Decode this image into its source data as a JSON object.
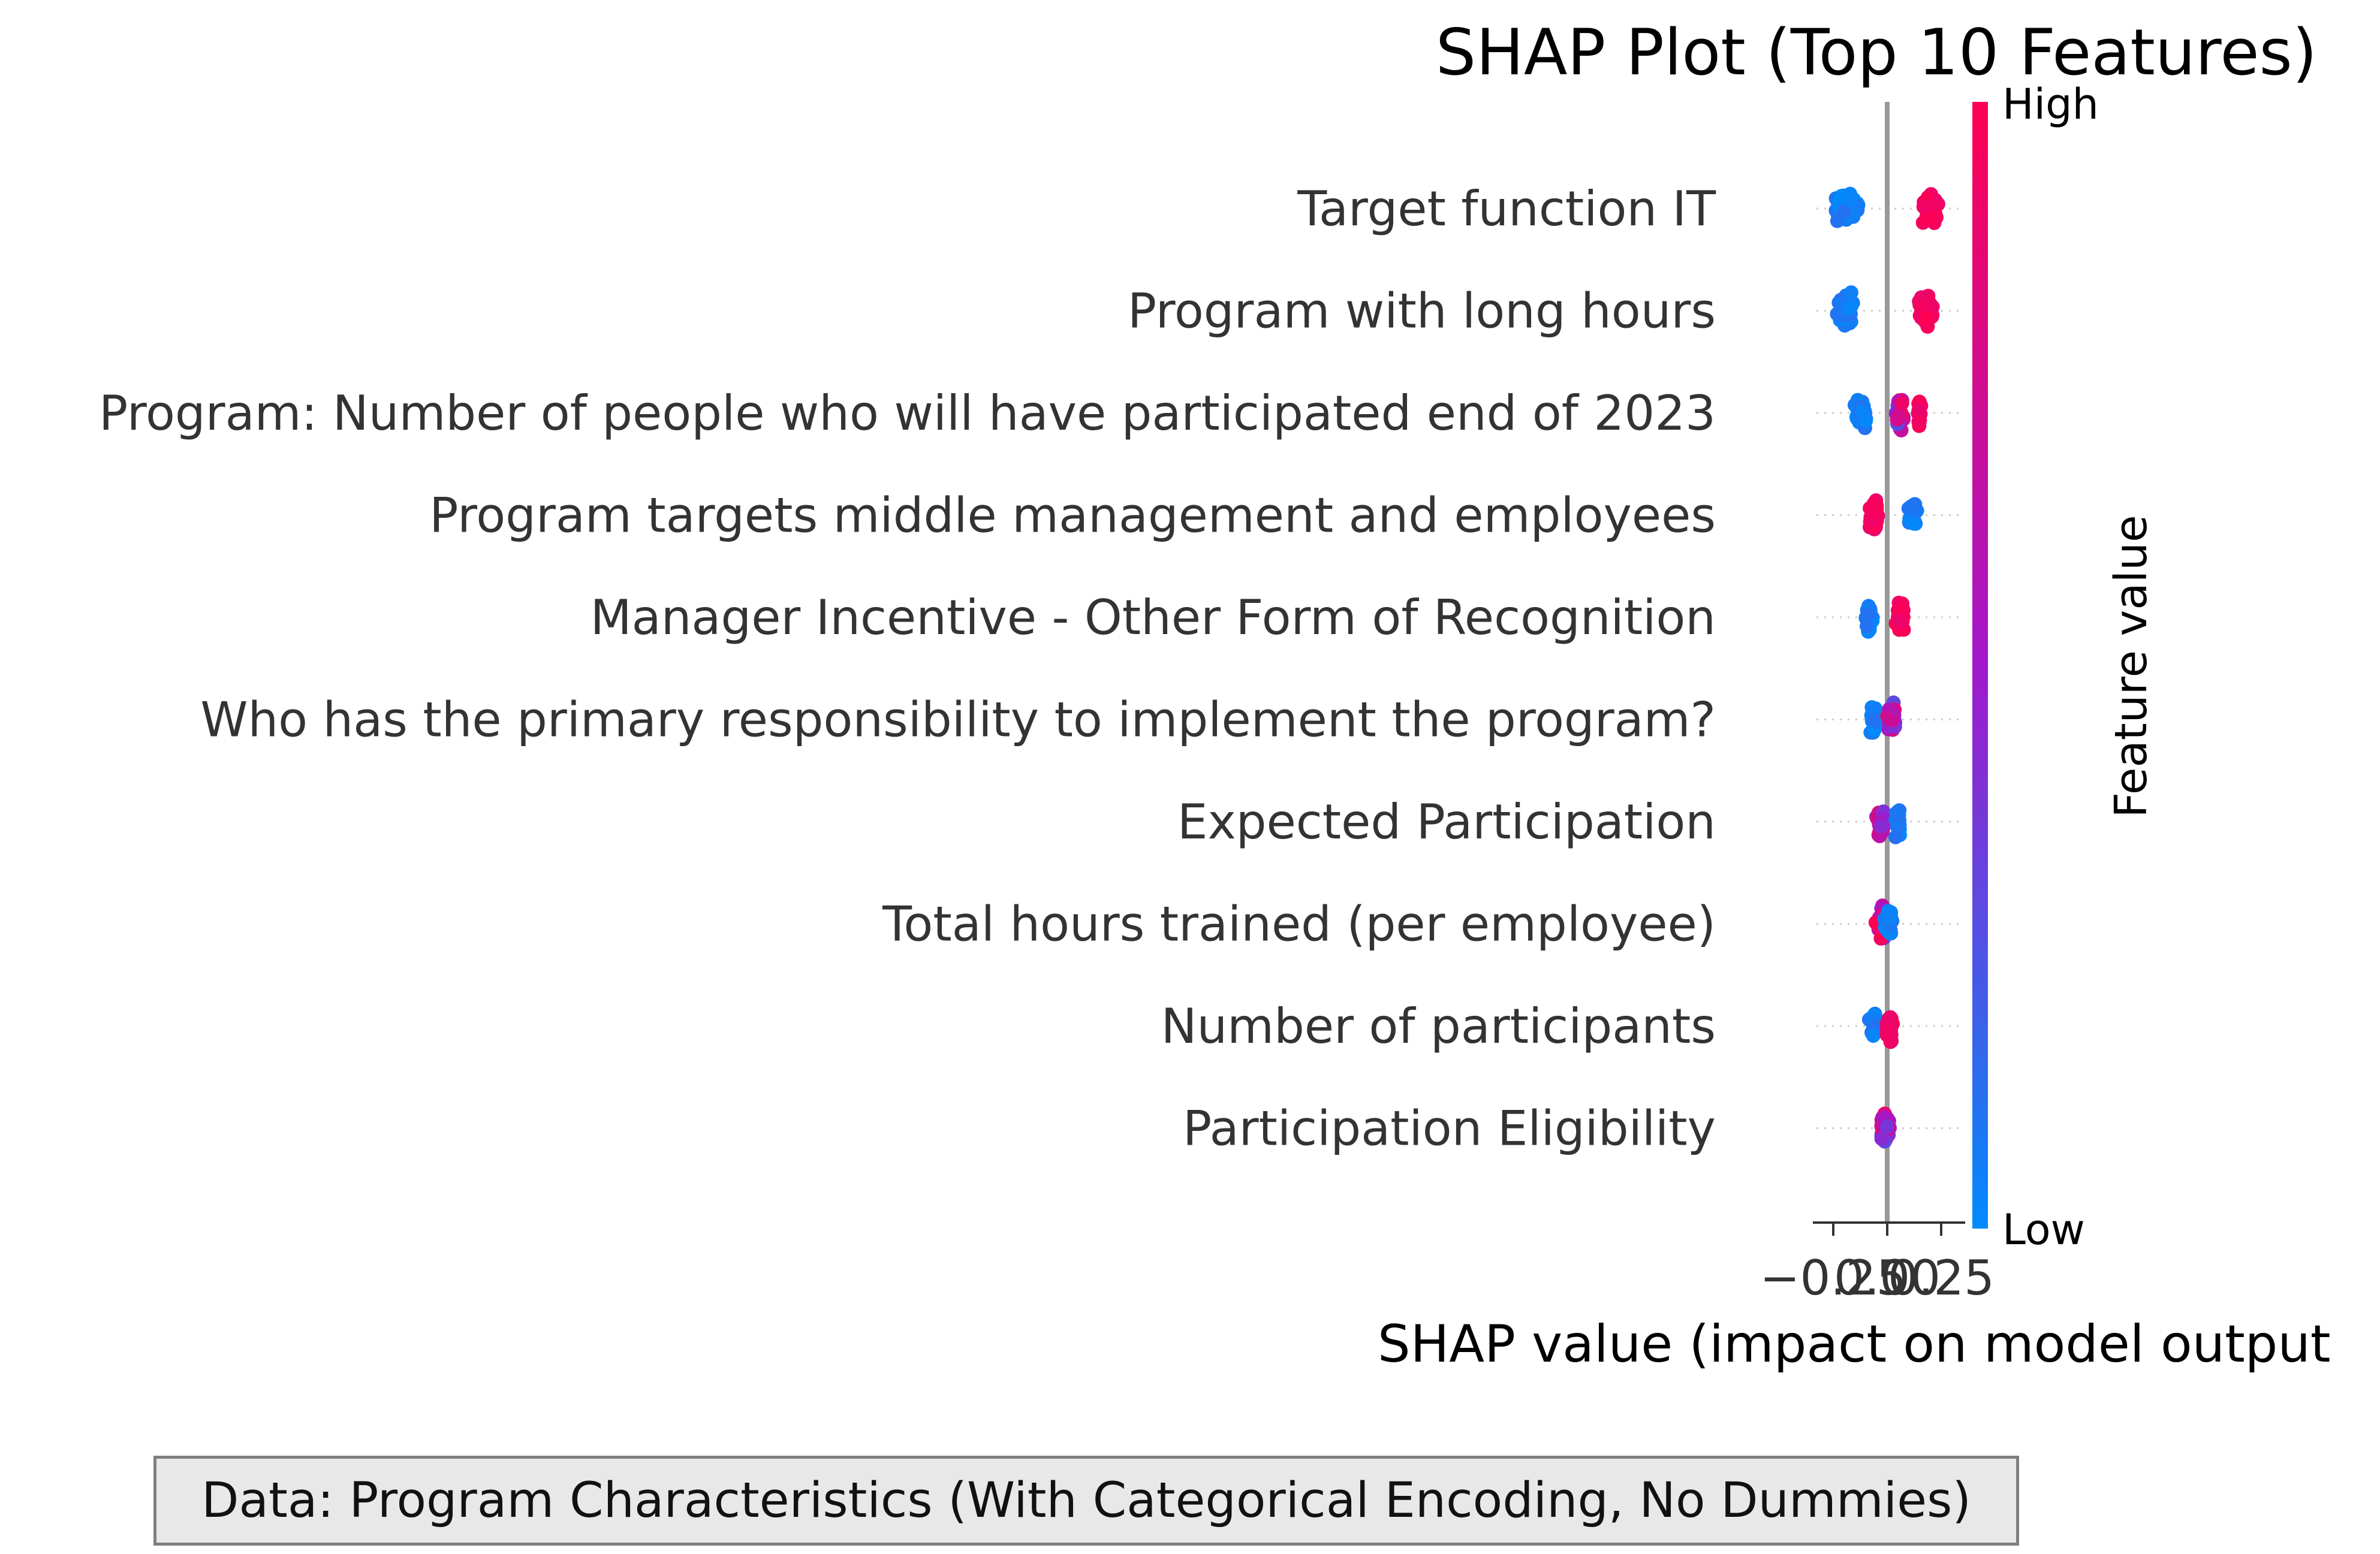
{
  "chart_data": {
    "type": "scatter",
    "title": "SHAP Plot (Top 10 Features)",
    "xlabel": "SHAP value (impact on model output",
    "x_tick_labels": [
      "−0.25",
      "0.00",
      "0.25"
    ],
    "x_tick_values": [
      -0.25,
      0.0,
      0.25
    ],
    "xlim": [
      -0.36,
      0.29
    ],
    "colorbar": {
      "label": "Feature value",
      "high_label": "High",
      "low_label": "Low",
      "color_low": "#008bfb",
      "color_high": "#ff0052"
    },
    "zero_line_color": "#999999",
    "features": [
      {
        "name": "Target function IT",
        "groups": [
          {
            "center": -0.19,
            "spread": 0.09,
            "color": "low",
            "count": 70
          },
          {
            "center": 0.2,
            "spread": 0.07,
            "color": "high",
            "count": 70
          }
        ]
      },
      {
        "name": "Program with long hours",
        "groups": [
          {
            "center": -0.19,
            "spread": 0.07,
            "color": "low",
            "count": 70
          },
          {
            "center": 0.18,
            "spread": 0.07,
            "color": "high",
            "count": 70
          }
        ]
      },
      {
        "name": "Program: Number of people who will have participated end of 2023",
        "groups": [
          {
            "center": -0.12,
            "spread": 0.06,
            "color": "low",
            "count": 45
          },
          {
            "center": 0.06,
            "spread": 0.05,
            "color": "mixed",
            "count": 35
          },
          {
            "center": 0.15,
            "spread": 0.03,
            "color": "high",
            "count": 12
          }
        ]
      },
      {
        "name": "Program targets middle management and employees",
        "groups": [
          {
            "center": -0.06,
            "spread": 0.04,
            "color": "high",
            "count": 90
          },
          {
            "center": 0.12,
            "spread": 0.04,
            "color": "low",
            "count": 40
          }
        ]
      },
      {
        "name": "Manager Incentive - Other Form of Recognition",
        "groups": [
          {
            "center": -0.08,
            "spread": 0.04,
            "color": "low",
            "count": 30
          },
          {
            "center": 0.06,
            "spread": 0.04,
            "color": "high",
            "count": 70
          }
        ]
      },
      {
        "name": "Who has the primary responsibility to implement the program?",
        "groups": [
          {
            "center": -0.06,
            "spread": 0.04,
            "color": "low",
            "count": 25
          },
          {
            "center": 0.02,
            "spread": 0.04,
            "color": "mixed",
            "count": 60
          }
        ]
      },
      {
        "name": "Expected Participation",
        "groups": [
          {
            "center": -0.03,
            "spread": 0.04,
            "color": "mixed",
            "count": 60
          },
          {
            "center": 0.05,
            "spread": 0.03,
            "color": "low",
            "count": 15
          }
        ]
      },
      {
        "name": "Total hours trained (per employee)",
        "groups": [
          {
            "center": -0.02,
            "spread": 0.06,
            "color": "mixed",
            "count": 70
          },
          {
            "center": 0.01,
            "spread": 0.04,
            "color": "low",
            "count": 30
          }
        ]
      },
      {
        "name": "Number of participants",
        "groups": [
          {
            "center": -0.06,
            "spread": 0.04,
            "color": "low",
            "count": 25
          },
          {
            "center": 0.01,
            "spread": 0.03,
            "color": "high",
            "count": 55
          }
        ]
      },
      {
        "name": "Participation Eligibility",
        "groups": [
          {
            "center": -0.01,
            "spread": 0.04,
            "color": "mixed",
            "count": 70
          }
        ]
      }
    ]
  },
  "footer": {
    "text": "Data: Program Characteristics (With Categorical Encoding, No Dummies)"
  }
}
